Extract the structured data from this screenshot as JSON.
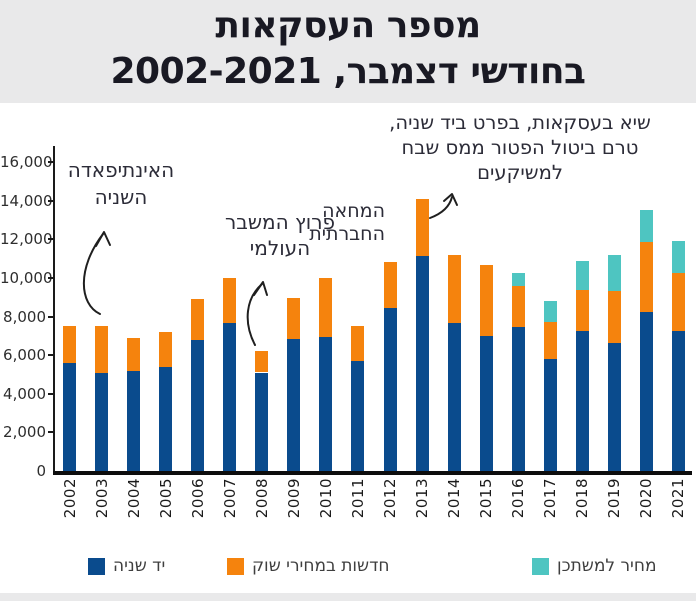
{
  "title": {
    "line1": "מספר העסקאות",
    "line2": "בחודשי דצמבר, 2002-2021"
  },
  "annotations": [
    {
      "id": "record",
      "lines": [
        "שיא בעסקאות, בפרט ביד שניה,",
        "טרם ביטול הפטור ממס שבח",
        "למשיקעים"
      ]
    },
    {
      "id": "intifada",
      "lines": [
        "האינתיפאדה",
        "השניה"
      ]
    },
    {
      "id": "crisis",
      "lines": [
        "פרוץ המשבר",
        "העולמי"
      ]
    },
    {
      "id": "protest",
      "lines": [
        "המחאה",
        "החברתית"
      ]
    }
  ],
  "legend": [
    {
      "label": "יד שניה",
      "color": "#0a4b8d"
    },
    {
      "label": "חדשות במחירי שוק",
      "color": "#f5830d"
    },
    {
      "label": "מחיר למשתכן",
      "color": "#4ec5c1"
    }
  ],
  "colors": {
    "second_hand": "#0a4b8d",
    "new_market_price": "#f5830d",
    "mechir_lamishtaken": "#4ec5c1",
    "title_band": "#e9e9ea",
    "axis": "#1a1a1a"
  },
  "chart_data": {
    "type": "bar",
    "stacked": true,
    "title": "מספר העסקאות בחודשי דצמבר, 2002-2021",
    "categories": [
      "2002",
      "2003",
      "2004",
      "2005",
      "2006",
      "2007",
      "2008",
      "2009",
      "2010",
      "2011",
      "2012",
      "2013",
      "2014",
      "2015",
      "2016",
      "2017",
      "2018",
      "2019",
      "2020",
      "2021"
    ],
    "series": [
      {
        "name": "יד שניה",
        "color": "#0a4b8d",
        "values": [
          5600,
          5100,
          5200,
          5400,
          6800,
          7650,
          5100,
          6850,
          6950,
          5700,
          8450,
          11150,
          7650,
          7000,
          7450,
          5800,
          7250,
          6650,
          8250,
          7250
        ]
      },
      {
        "name": "חדשות במחירי שוק",
        "color": "#f5830d",
        "values": [
          1900,
          2400,
          1700,
          1800,
          2100,
          2350,
          1100,
          2100,
          3050,
          1800,
          2350,
          2950,
          3550,
          3650,
          2150,
          1900,
          2100,
          2650,
          3600,
          3000
        ]
      },
      {
        "name": "מחיר למשתכן",
        "color": "#4ec5c1",
        "values": [
          0,
          0,
          0,
          0,
          0,
          0,
          0,
          0,
          0,
          0,
          0,
          0,
          0,
          0,
          650,
          1100,
          1500,
          1900,
          1650,
          1650
        ]
      }
    ],
    "totals": [
      7500,
      7500,
      6900,
      7200,
      8900,
      10000,
      6200,
      8950,
      10000,
      7500,
      10800,
      14100,
      11200,
      10650,
      10250,
      8800,
      10850,
      11200,
      13500,
      11900
    ],
    "xlabel": "",
    "ylabel": "",
    "ylim": [
      0,
      16000
    ],
    "yticks": [
      0,
      2000,
      4000,
      6000,
      8000,
      10000,
      12000,
      14000,
      16000
    ],
    "grid": false,
    "legend_position": "bottom",
    "x_tick_rotation": -90
  }
}
